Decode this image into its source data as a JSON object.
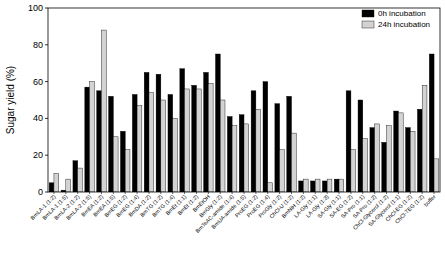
{
  "chart_data": {
    "type": "bar",
    "y_label": "Sugar yield (%)",
    "categories": [
      "BmLA-1 (1:2)",
      "BmLA-1 (1:5)",
      "BmLA-2 (1:2)",
      "BmLA-2 (1:5)",
      "BmEA (1:2)",
      "BmEA (1:5)",
      "BmEG (1:2)",
      "BmEG (1:4)",
      "BmDA (1:2)",
      "BmTG (1:2)",
      "BmTG (1:4)",
      "BmEt (1:1)",
      "BmEt (1:2)",
      "BmEtOH",
      "BmGly (1:2)",
      "BmTeAC-amide (1:4)",
      "BmUA-amide (1:5)",
      "ProEG (1:2)",
      "ProEG (1:4)",
      "ProGly (1:2)",
      "ChCl-U (1:2)",
      "BmNiH (1:2)",
      "LA-Gly (1:1)",
      "LA-Gly (1:3)",
      "SA-Gly (1:1)",
      "SA-EG (1:2)",
      "SA-Pro (1:1)",
      "SA-Pro (1:2)",
      "ChCl-Glycerol (1:2)",
      "SA-Glycerol (1:1)",
      "ChCl-EG (1:2)",
      "ChCl-TEG (1:2)",
      "buffer"
    ],
    "series": [
      {
        "name": "0h incubation",
        "color": "#000000",
        "values": [
          5,
          1,
          17,
          57,
          55,
          52,
          33,
          53,
          65,
          64,
          53,
          67,
          58,
          65,
          75,
          41,
          42,
          55,
          60,
          48,
          52,
          6,
          6,
          6,
          7,
          55,
          50,
          35,
          27,
          44,
          35,
          45,
          75
        ]
      },
      {
        "name": "24h incubation",
        "color": "#d3d3d3",
        "values": [
          10,
          7,
          13,
          60,
          88,
          30,
          23,
          47,
          54,
          50,
          40,
          56,
          56,
          59,
          50,
          36,
          37,
          45,
          5,
          23,
          32,
          7,
          7,
          7,
          7,
          23,
          29,
          37,
          36,
          43,
          33,
          58,
          18
        ]
      }
    ],
    "ylim": [
      0,
      100
    ],
    "yticks": [
      0,
      20,
      40,
      60,
      80,
      100
    ],
    "legend": "upper-right",
    "grid": false
  }
}
